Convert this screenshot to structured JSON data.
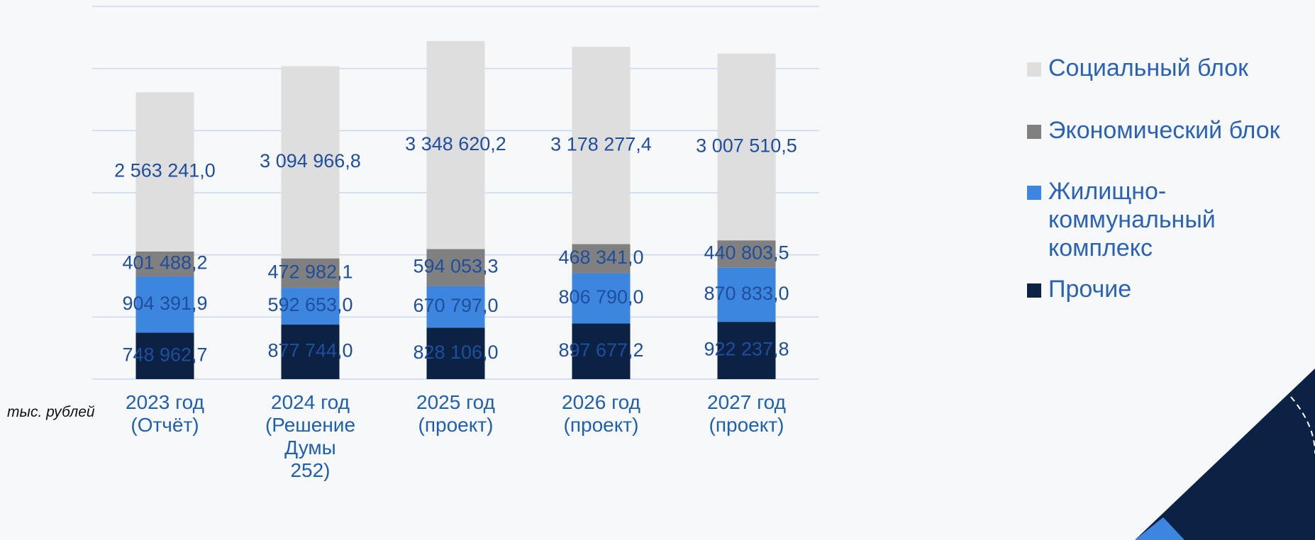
{
  "chart_data": {
    "type": "stacked-bar",
    "categories": [
      "2023 год\n(Отчёт)",
      "2024 год\n(Решение Думы\n252)",
      "2025 год\n(проект)",
      "2026 год\n(проект)",
      "2027 год\n(проект)"
    ],
    "series": [
      {
        "name": "Прочие",
        "color": "#0b2244",
        "values": [
          748962.7,
          877744.0,
          828106.0,
          897677.2,
          922237.8
        ],
        "value_labels": [
          "748 962,7",
          "877 744,0",
          "828 106,0",
          "897 677,2",
          "922 237,8"
        ]
      },
      {
        "name": "Жилищно-\nкоммунальный\nкомплекс",
        "color": "#3d86e0",
        "values": [
          904391.9,
          592653.0,
          670797.0,
          806790.0,
          870833.0
        ],
        "value_labels": [
          "904 391,9",
          "592 653,0",
          "670 797,0",
          "806 790,0",
          "870 833,0"
        ]
      },
      {
        "name": "Экономический блок",
        "color": "#808080",
        "values": [
          401488.2,
          472982.1,
          594053.3,
          468341.0,
          440803.5
        ],
        "value_labels": [
          "401 488,2",
          "472 982,1",
          "594 053,3",
          "468 341,0",
          "440 803,5"
        ]
      },
      {
        "name": "Социальный блок",
        "color": "#dedede",
        "values": [
          2563241.0,
          3094966.8,
          3348620.2,
          3178277.4,
          3007510.5
        ],
        "value_labels": [
          "2 563 241,0",
          "3 094 966,8",
          "3 348 620,2",
          "3 178 277,4",
          "3 007 510,5"
        ]
      }
    ],
    "unit_label": "тыс. рублей",
    "ylim": [
      0,
      6000000
    ],
    "yticks": [
      0,
      1000000,
      2000000,
      3000000,
      4000000,
      5000000,
      6000000
    ],
    "grid": true,
    "legend": "right"
  }
}
